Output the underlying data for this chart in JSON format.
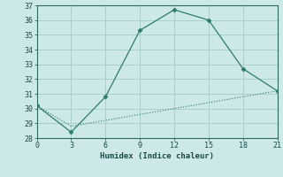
{
  "xlabel": "Humidex (Indice chaleur)",
  "x_main": [
    0,
    3,
    6,
    9,
    12,
    15,
    18,
    21
  ],
  "y_main": [
    30.2,
    28.4,
    30.8,
    35.3,
    36.7,
    36.0,
    32.7,
    31.2
  ],
  "x_flat": [
    0,
    3,
    6,
    9,
    12,
    15,
    18,
    21
  ],
  "y_flat": [
    30.2,
    28.8,
    29.2,
    29.6,
    30.0,
    30.4,
    30.8,
    31.2
  ],
  "line_color": "#2d7a6e",
  "bg_color": "#cce8e8",
  "grid_color": "#aacece",
  "xlim": [
    0,
    21
  ],
  "ylim": [
    28,
    37
  ],
  "xticks": [
    0,
    3,
    6,
    9,
    12,
    15,
    18,
    21
  ],
  "yticks": [
    28,
    29,
    30,
    31,
    32,
    33,
    34,
    35,
    36,
    37
  ],
  "tick_fontsize": 6.0,
  "xlabel_fontsize": 6.5
}
